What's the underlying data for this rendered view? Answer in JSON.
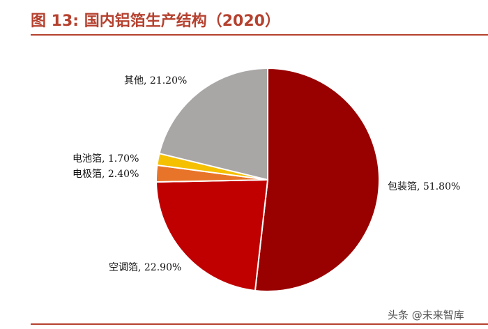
{
  "header": {
    "title": "图 13:  国内铝箔生产结构（2020）"
  },
  "watermark": {
    "text": "头条 @未来智库"
  },
  "chart_data": {
    "type": "pie",
    "title": "图 13:  国内铝箔生产结构（2020）",
    "slices": [
      {
        "label": "包装箔",
        "value": 51.8,
        "display": "包装箔, 51.80%",
        "color": "#990000"
      },
      {
        "label": "空调箔",
        "value": 22.9,
        "display": "空调箔, 22.90%",
        "color": "#c00000"
      },
      {
        "label": "电极箔",
        "value": 2.4,
        "display": "电极箔, 2.40%",
        "color": "#e8742a"
      },
      {
        "label": "电池箔",
        "value": 1.7,
        "display": "电池箔, 1.70%",
        "color": "#f5c000"
      },
      {
        "label": "其他",
        "value": 21.2,
        "display": "其他, 21.20%",
        "color": "#a9a6a6"
      }
    ],
    "start_angle_deg": 0,
    "direction": "clockwise",
    "legend": "none",
    "labels": "outside"
  }
}
